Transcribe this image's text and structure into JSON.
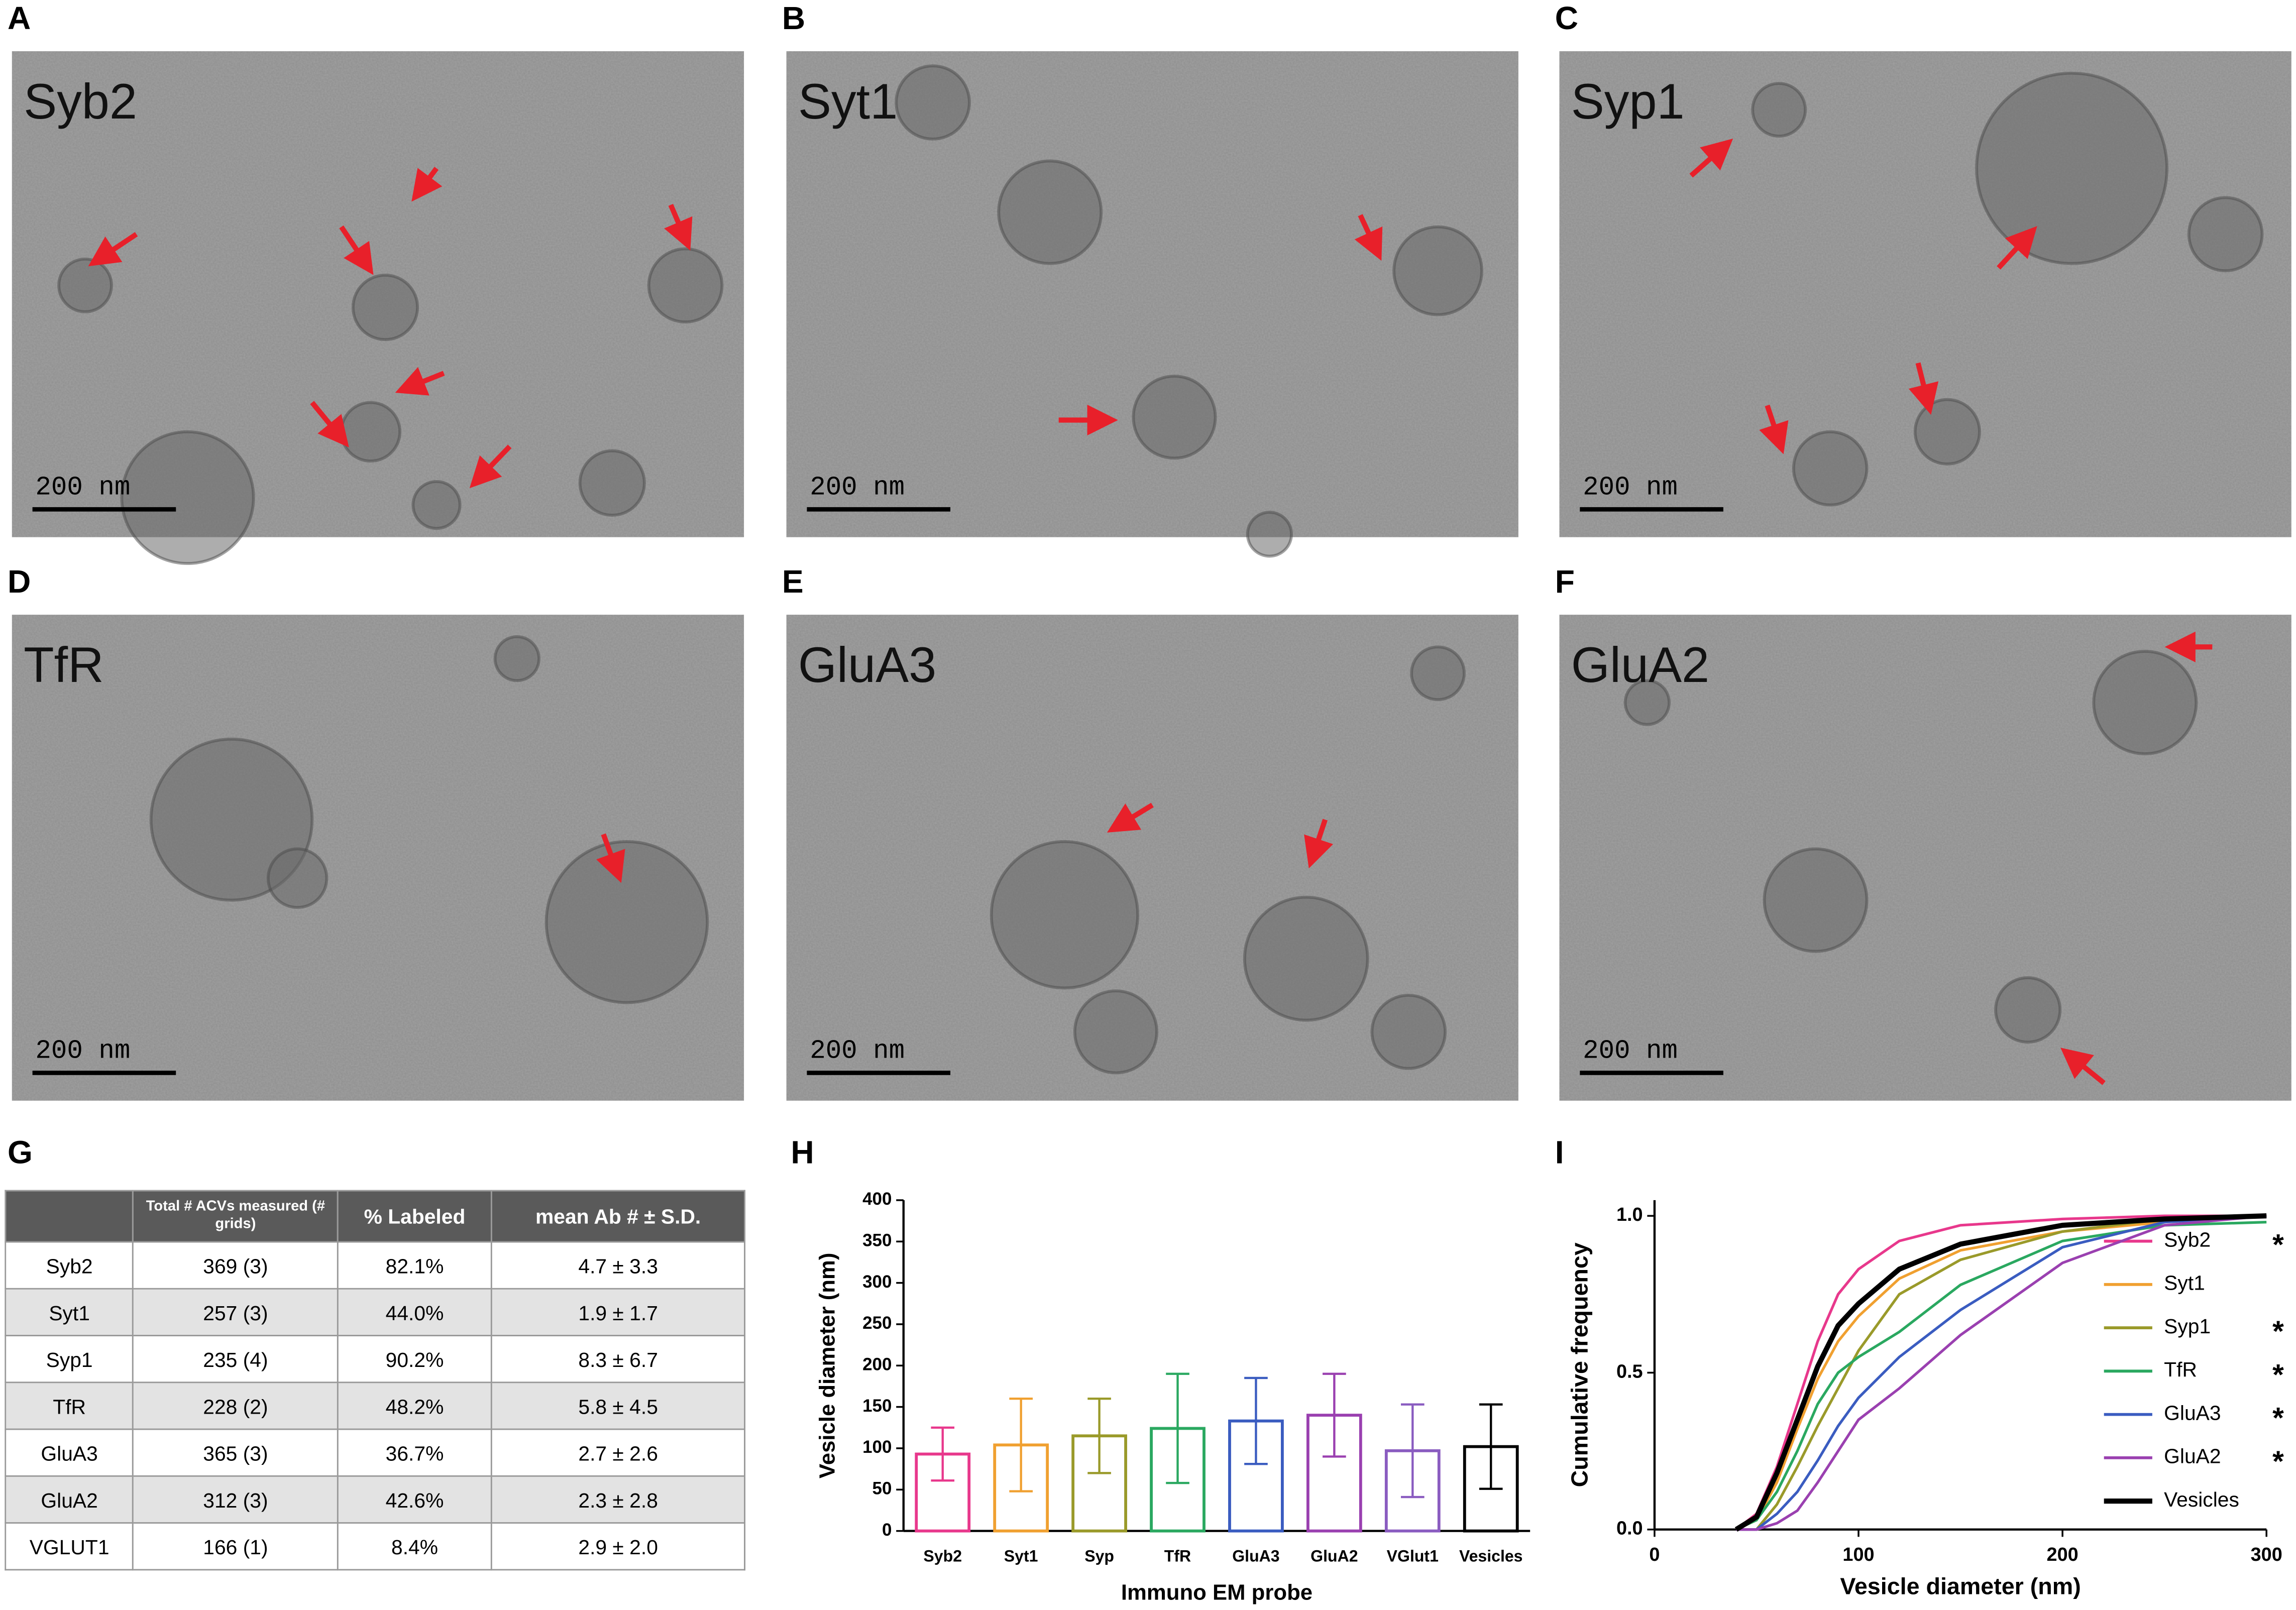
{
  "panels": [
    {
      "letter": "A",
      "label": "Syb2",
      "scale": "200 nm"
    },
    {
      "letter": "B",
      "label": "Syt1",
      "scale": "200 nm"
    },
    {
      "letter": "C",
      "label": "Syp1",
      "scale": "200 nm"
    },
    {
      "letter": "D",
      "label": "TfR",
      "scale": "200 nm"
    },
    {
      "letter": "E",
      "label": "GluA3",
      "scale": "200 nm"
    },
    {
      "letter": "F",
      "label": "GluA2",
      "scale": "200 nm"
    }
  ],
  "table": {
    "letter": "G",
    "header": [
      "Total # ACVs measured (# grids)",
      "% Labeled",
      "mean Ab # ± S.D."
    ],
    "rows": [
      [
        "Syb2",
        "369 (3)",
        "82.1%",
        "4.7 ± 3.3"
      ],
      [
        "Syt1",
        "257 (3)",
        "44.0%",
        "1.9 ± 1.7"
      ],
      [
        "Syp1",
        "235 (4)",
        "90.2%",
        "8.3 ± 6.7"
      ],
      [
        "TfR",
        "228 (2)",
        "48.2%",
        "5.8 ± 4.5"
      ],
      [
        "GluA3",
        "365 (3)",
        "36.7%",
        "2.7 ± 2.6"
      ],
      [
        "GluA2",
        "312 (3)",
        "42.6%",
        "2.3 ± 2.8"
      ],
      [
        "VGLUT1",
        "166 (1)",
        "8.4%",
        "2.9 ± 2.0"
      ]
    ]
  },
  "chart_data": [
    {
      "type": "bar",
      "letter": "H",
      "x_label": "Immuno EM probe",
      "y_label": "Vesicle diameter (nm)",
      "categories": [
        "Syb2",
        "Syt1",
        "Syp",
        "TfR",
        "GluA3",
        "GluA2",
        "VGlut1",
        "Vesicles"
      ],
      "values": [
        93,
        104,
        115,
        124,
        133,
        140,
        97,
        102
      ],
      "errors": [
        32,
        56,
        45,
        66,
        52,
        50,
        56,
        51
      ],
      "colors": [
        "#e8388c",
        "#f0a030",
        "#9a9a2a",
        "#2aa860",
        "#3a5cc0",
        "#9a40b0",
        "#8a5cc0",
        "#000000"
      ],
      "ylim": [
        0,
        400
      ],
      "yticks": [
        0,
        50,
        100,
        150,
        200,
        250,
        300,
        350,
        400
      ]
    },
    {
      "type": "line",
      "letter": "I",
      "x_label": "Vesicle diameter (nm)",
      "y_label": "Cumulative frequency",
      "x": [
        40,
        50,
        60,
        70,
        80,
        90,
        100,
        120,
        150,
        200,
        250,
        300
      ],
      "series": [
        {
          "name": "Syb2",
          "color": "#e8388c",
          "annotation": "*",
          "values": [
            0,
            0.05,
            0.2,
            0.4,
            0.6,
            0.75,
            0.83,
            0.92,
            0.97,
            0.99,
            1.0,
            1.0
          ]
        },
        {
          "name": "Syt1",
          "color": "#f0a030",
          "values": [
            0,
            0.03,
            0.15,
            0.32,
            0.48,
            0.6,
            0.68,
            0.8,
            0.89,
            0.95,
            0.98,
            1.0
          ]
        },
        {
          "name": "Syp1",
          "color": "#9a9a2a",
          "annotation": "*",
          "values": [
            0,
            0,
            0.08,
            0.2,
            0.33,
            0.45,
            0.57,
            0.75,
            0.86,
            0.95,
            0.99,
            1.0
          ]
        },
        {
          "name": "TfR",
          "color": "#2aa860",
          "annotation": "*",
          "values": [
            0,
            0.03,
            0.12,
            0.25,
            0.4,
            0.5,
            0.55,
            0.63,
            0.78,
            0.92,
            0.97,
            0.98
          ]
        },
        {
          "name": "GluA3",
          "color": "#3a5cc0",
          "annotation": "*",
          "values": [
            0,
            0,
            0.05,
            0.12,
            0.22,
            0.33,
            0.42,
            0.55,
            0.7,
            0.9,
            0.98,
            1.0
          ]
        },
        {
          "name": "GluA2",
          "color": "#9a40b0",
          "annotation": "*",
          "values": [
            0,
            0,
            0.02,
            0.06,
            0.15,
            0.25,
            0.35,
            0.45,
            0.62,
            0.85,
            0.97,
            1.0
          ]
        },
        {
          "name": "Vesicles",
          "color": "#000000",
          "values": [
            0,
            0.04,
            0.18,
            0.35,
            0.52,
            0.65,
            0.72,
            0.83,
            0.91,
            0.97,
            0.99,
            1.0
          ]
        }
      ],
      "xlim": [
        0,
        300
      ],
      "xticks": [
        0,
        100,
        200,
        300
      ],
      "ylim": [
        0,
        1.05
      ],
      "yticks": [
        {
          "value": 0,
          "label": "0.0"
        },
        {
          "value": 0.5,
          "label": "0.5"
        },
        {
          "value": 1,
          "label": "1.0"
        }
      ]
    }
  ]
}
